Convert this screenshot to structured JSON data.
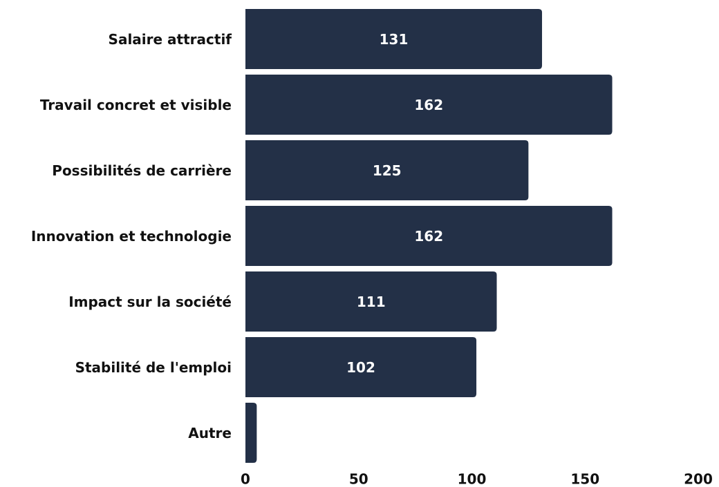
{
  "chart_data": {
    "type": "barh",
    "categories": [
      "Salaire attractif",
      "Travail concret et visible",
      "Possibilités de carrière",
      "Innovation et technologie",
      "Impact sur la société",
      "Stabilité de l'emploi",
      "Autre"
    ],
    "values": [
      131,
      162,
      125,
      162,
      111,
      102,
      5
    ],
    "color": "#233047",
    "xlim": [
      0,
      200
    ],
    "xticks": [
      0,
      50,
      100,
      150,
      200
    ],
    "grid": false
  }
}
